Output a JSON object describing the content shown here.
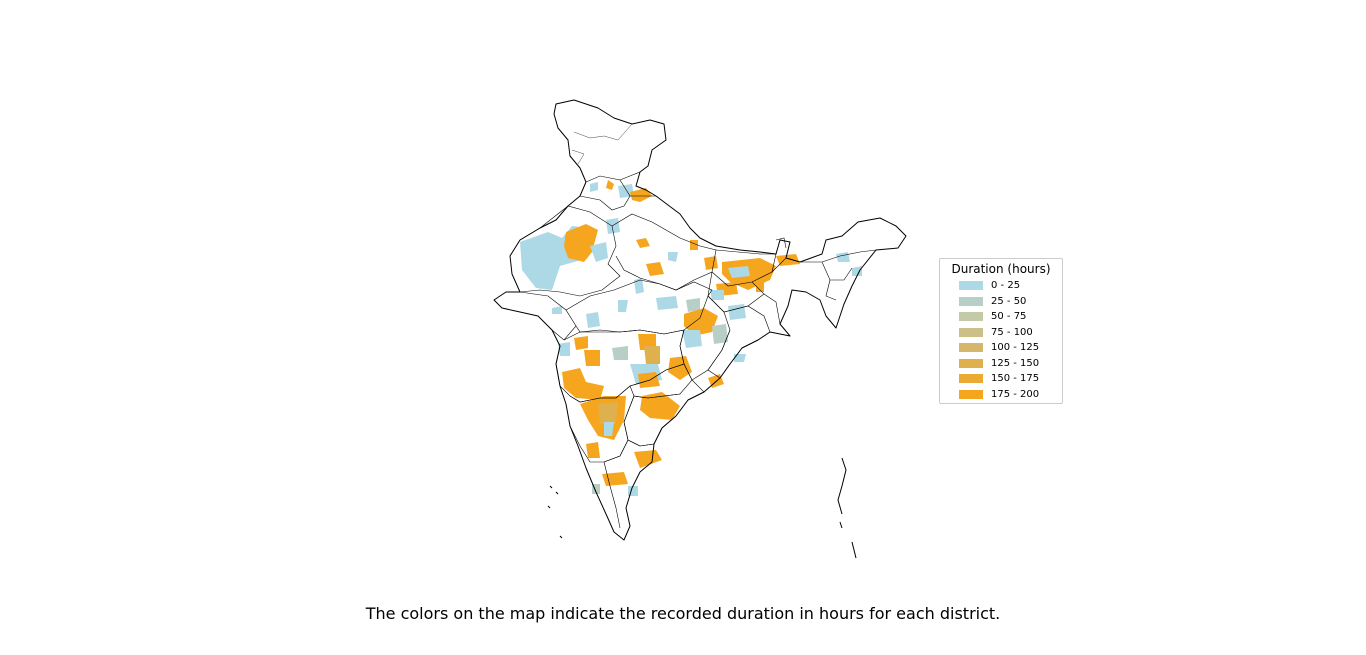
{
  "map": {
    "region": "India",
    "description_key": "district-choropleth"
  },
  "legend": {
    "title": "Duration (hours)",
    "bins": [
      {
        "label": "0 - 25",
        "color": "#add8e6"
      },
      {
        "label": "25 - 50",
        "color": "#b8cfc6"
      },
      {
        "label": "50 - 75",
        "color": "#c4caa7"
      },
      {
        "label": "75 - 100",
        "color": "#ccc088"
      },
      {
        "label": "100 - 125",
        "color": "#d4b76a"
      },
      {
        "label": "125 - 150",
        "color": "#deb04e"
      },
      {
        "label": "150 - 175",
        "color": "#eaaa34"
      },
      {
        "label": "175 - 200",
        "color": "#f6a61e"
      }
    ]
  },
  "caption": "The colors on the map indicate the recorded duration in hours for each district."
}
